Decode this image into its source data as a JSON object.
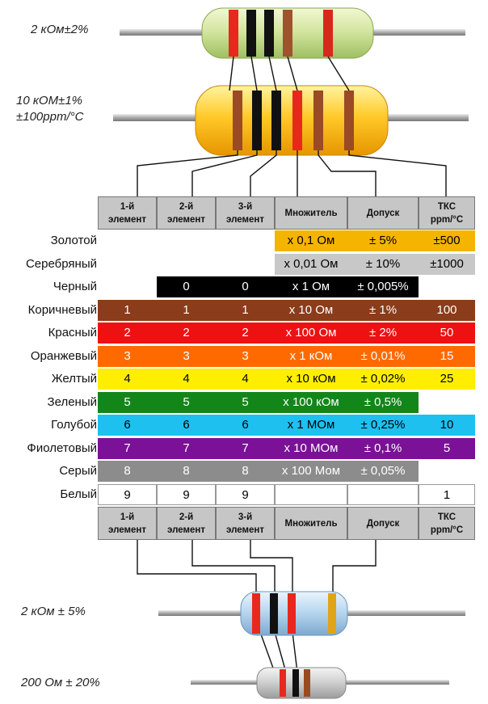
{
  "labels": {
    "r1": "2 кОм±2%",
    "r2_line1": "10 кОМ±1%",
    "r2_line2": "±100ppm/°C",
    "r3": "2 кОм ± 5%",
    "r4": "200 Ом ± 20%"
  },
  "headers": [
    {
      "id": "d1",
      "text": "1-й\nэлемент"
    },
    {
      "id": "d2",
      "text": "2-й\nэлемент"
    },
    {
      "id": "d3",
      "text": "3-й\nэлемент"
    },
    {
      "id": "mult",
      "text": "Множитель"
    },
    {
      "id": "tol",
      "text": "Допуск"
    },
    {
      "id": "tcr",
      "text": "ТКС\nppm/°C"
    }
  ],
  "rows": [
    {
      "name": "Золотой",
      "color": "#f5b400",
      "text_color": "#000000",
      "d1": "",
      "d2": "",
      "d3": "",
      "mult": "x 0,1  Ом",
      "tol": "± 5%",
      "tcr": "±500"
    },
    {
      "name": "Серебряный",
      "color": "#c8c8c8",
      "text_color": "#000000",
      "d1": "",
      "d2": "",
      "d3": "",
      "mult": "x 0,01  Ом",
      "tol": "± 10%",
      "tcr": "±1000"
    },
    {
      "name": "Черный",
      "color": "#000000",
      "text_color": "#ffffff",
      "d1": "",
      "d2": "0",
      "d3": "0",
      "mult": "x 1  Ом",
      "tol": "± 0,005%",
      "tcr": ""
    },
    {
      "name": "Коричневый",
      "color": "#8b3c1a",
      "text_color": "#ffffff",
      "d1": "1",
      "d2": "1",
      "d3": "1",
      "mult": "x 10  Ом",
      "tol": "± 1%",
      "tcr": "100"
    },
    {
      "name": "Красный",
      "color": "#ee1111",
      "text_color": "#ffffff",
      "d1": "2",
      "d2": "2",
      "d3": "2",
      "mult": "x 100  Ом",
      "tol": "± 2%",
      "tcr": "50"
    },
    {
      "name": "Оранжевый",
      "color": "#ff6a00",
      "text_color": "#ffffff",
      "d1": "3",
      "d2": "3",
      "d3": "3",
      "mult": "x 1  кОм",
      "tol": "± 0,01%",
      "tcr": "15"
    },
    {
      "name": "Желтый",
      "color": "#ffee00",
      "text_color": "#000000",
      "d1": "4",
      "d2": "4",
      "d3": "4",
      "mult": "x 10  кОм",
      "tol": "± 0,02%",
      "tcr": "25"
    },
    {
      "name": "Зеленый",
      "color": "#13861a",
      "text_color": "#ffffff",
      "d1": "5",
      "d2": "5",
      "d3": "5",
      "mult": "x 100  кОм",
      "tol": "± 0,5%",
      "tcr": ""
    },
    {
      "name": "Голубой",
      "color": "#1ec0f0",
      "text_color": "#000000",
      "d1": "6",
      "d2": "6",
      "d3": "6",
      "mult": "x 1  МОм",
      "tol": "± 0,25%",
      "tcr": "10"
    },
    {
      "name": "Фиолетовый",
      "color": "#7a1196",
      "text_color": "#ffffff",
      "d1": "7",
      "d2": "7",
      "d3": "7",
      "mult": "x 10  МОм",
      "tol": "± 0,1%",
      "tcr": "5"
    },
    {
      "name": "Серый",
      "color": "#8c8c8c",
      "text_color": "#ffffff",
      "d1": "8",
      "d2": "8",
      "d3": "8",
      "mult": "x 100  Мом",
      "tol": "± 0,05%",
      "tcr": ""
    },
    {
      "name": "Белый",
      "color": "#ffffff",
      "text_color": "#000000",
      "d1": "9",
      "d2": "9",
      "d3": "9",
      "mult": "",
      "tol": "",
      "tcr": "1"
    }
  ]
}
